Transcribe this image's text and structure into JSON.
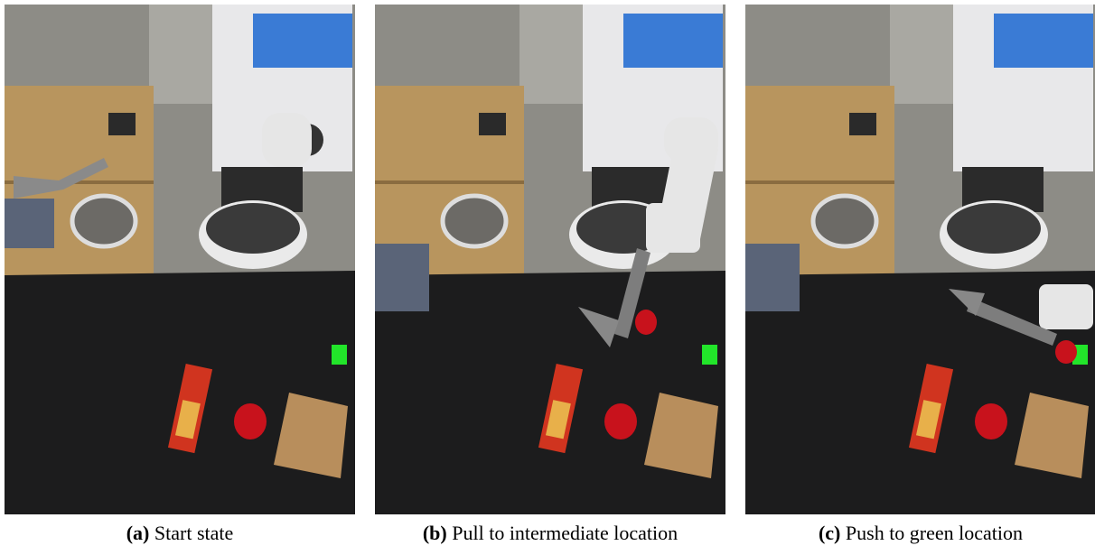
{
  "figure": {
    "panels": [
      {
        "label": "(a)",
        "caption": "Start state"
      },
      {
        "label": "(b)",
        "caption": "Pull to intermediate location"
      },
      {
        "label": "(c)",
        "caption": "Push to green location"
      }
    ]
  }
}
